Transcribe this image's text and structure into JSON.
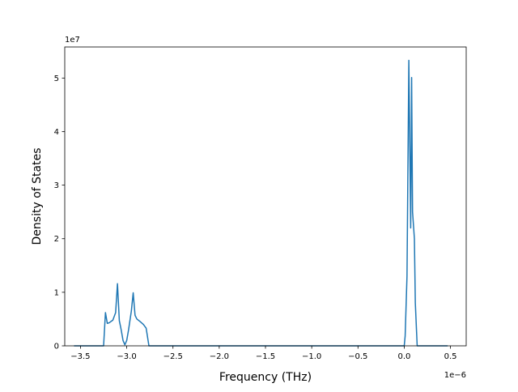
{
  "chart_data": {
    "type": "line",
    "title": "",
    "xlabel": "Frequency (THz)",
    "ylabel": "Density of States",
    "x_offset_label": "1e−6",
    "y_offset_label": "1e7",
    "xlim": [
      -3.67,
      0.67
    ],
    "ylim": [
      0,
      5.58
    ],
    "x_ticks": [
      -3.5,
      -3.0,
      -2.5,
      -2.0,
      -1.5,
      -1.0,
      -0.5,
      0.0,
      0.5
    ],
    "x_tick_labels": [
      "−3.5",
      "−3.0",
      "−2.5",
      "−2.0",
      "−1.5",
      "−1.0",
      "−0.5",
      "0.0",
      "0.5"
    ],
    "y_ticks": [
      0,
      1,
      2,
      3,
      4,
      5
    ],
    "y_tick_labels": [
      "0",
      "1",
      "2",
      "3",
      "4",
      "5"
    ],
    "grid": false,
    "series": [
      {
        "color": "#1f77b4",
        "x": [
          -3.57,
          -3.25,
          -3.23,
          -3.21,
          -3.19,
          -3.15,
          -3.12,
          -3.1,
          -3.08,
          -3.06,
          -3.04,
          -3.02,
          -3.0,
          -2.98,
          -2.95,
          -2.93,
          -2.91,
          -2.89,
          -2.86,
          -2.82,
          -2.79,
          -2.76,
          -2.5,
          -2.0,
          -1.5,
          -1.0,
          -0.5,
          0.0,
          0.01,
          0.03,
          0.05,
          0.07,
          0.08,
          0.09,
          0.11,
          0.12,
          0.14,
          0.2,
          0.47
        ],
        "y": [
          0,
          0,
          0.62,
          0.42,
          0.43,
          0.48,
          0.62,
          1.16,
          0.47,
          0.3,
          0.1,
          0.02,
          0.1,
          0.3,
          0.65,
          0.99,
          0.57,
          0.5,
          0.46,
          0.4,
          0.33,
          0,
          0,
          0,
          0,
          0,
          0,
          0,
          0.18,
          1.3,
          5.33,
          2.2,
          5.01,
          2.5,
          2.0,
          0.8,
          0,
          0,
          0
        ]
      }
    ]
  }
}
